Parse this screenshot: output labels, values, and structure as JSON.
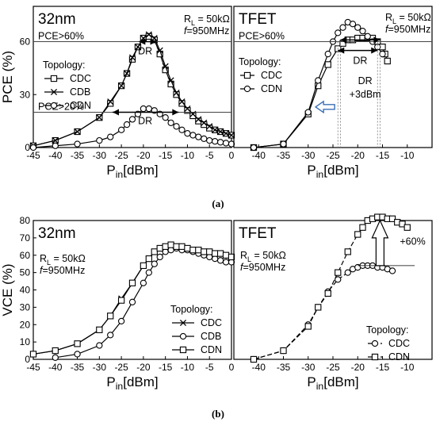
{
  "captions": {
    "a": "(a)",
    "b": "(b)"
  },
  "chart_data": [
    {
      "id": "a_left",
      "type": "line",
      "title": "32nm",
      "xlabel": "Pin[dBm]",
      "ylabel": "PCE (%)",
      "xlim": [
        -45,
        0
      ],
      "ylim": [
        0,
        80
      ],
      "xticks": [
        -45,
        -40,
        -35,
        -30,
        -25,
        -20,
        -15,
        -10,
        -5,
        0
      ],
      "yticks": [
        0,
        30,
        60
      ],
      "legend_title": "Topology:",
      "annotations": [
        "RL = 50kΩ",
        "f=950MHz",
        "PCE>60%",
        "PCE>20%",
        "DR",
        "DR"
      ],
      "series": [
        {
          "name": "CDC",
          "marker": "square",
          "style": "solid",
          "x": [
            -45,
            -40,
            -35,
            -30,
            -27.5,
            -25,
            -23.75,
            -22.5,
            -21.25,
            -20,
            -18.75,
            -17.5,
            -16.25,
            -15,
            -13.75,
            -12.5,
            -11.25,
            -10,
            -8.75,
            -7.5,
            -6.25,
            -5,
            -3.75,
            -2.5,
            -1.25,
            0
          ],
          "y": [
            1,
            4,
            9,
            17,
            25,
            35,
            42,
            50,
            57,
            62,
            63,
            61,
            53,
            44,
            36,
            30,
            25,
            21,
            18,
            15,
            13,
            11,
            10,
            9,
            8,
            7
          ]
        },
        {
          "name": "CDB",
          "marker": "cross",
          "style": "solid",
          "x": [
            -45,
            -40,
            -35,
            -30,
            -27.5,
            -25,
            -23.75,
            -22.5,
            -21.25,
            -20,
            -18.75,
            -17.5,
            -16.25,
            -15,
            -13.75,
            -12.5,
            -11.25,
            -10,
            -8.75,
            -7.5,
            -6.25,
            -5,
            -3.75,
            -2.5,
            -1.25,
            0
          ],
          "y": [
            1,
            4,
            9,
            17,
            26,
            35,
            42,
            51,
            57,
            62,
            64,
            62,
            55,
            46,
            38,
            31,
            26,
            22,
            19,
            16,
            14,
            12,
            10,
            9,
            8,
            7
          ]
        },
        {
          "name": "CDN",
          "marker": "circle",
          "style": "solid",
          "x": [
            -45,
            -40,
            -35,
            -30,
            -27.5,
            -25,
            -23.75,
            -22.5,
            -21.25,
            -20,
            -18.75,
            -17.5,
            -16.25,
            -15,
            -13.75,
            -12.5,
            -11.25,
            -10,
            -8.75,
            -7.5,
            -6.25,
            -5,
            -3.75,
            -2.5,
            -1.25,
            0
          ],
          "y": [
            0,
            1,
            2,
            4,
            6,
            10,
            13,
            16,
            19,
            22,
            22,
            21,
            19,
            17,
            14,
            12,
            10,
            8,
            7,
            6,
            5,
            4,
            3.5,
            3,
            2.5,
            2
          ]
        }
      ]
    },
    {
      "id": "a_right",
      "type": "line",
      "title": "TFET",
      "xlabel": "Pin[dBm]",
      "ylabel": "",
      "xlim": [
        -45,
        -5
      ],
      "ylim": [
        0,
        80
      ],
      "xticks": [
        -40,
        -35,
        -30,
        -25,
        -20,
        -15,
        -10
      ],
      "legend_title": "Topology:",
      "annotations": [
        "RL = 50kΩ",
        "f=950MHz",
        "PCE>60%",
        "DR",
        "DR",
        "+3dBm"
      ],
      "series": [
        {
          "name": "CDC",
          "marker": "square",
          "style": "solid",
          "x": [
            -41,
            -35,
            -30,
            -28,
            -26,
            -24,
            -23,
            -22,
            -21,
            -20,
            -19,
            -18,
            -17,
            -16,
            -15,
            -14.5,
            -14
          ],
          "y": [
            0,
            2,
            19,
            35,
            47,
            56,
            59,
            61,
            61,
            62,
            62,
            62,
            62,
            60,
            57,
            53,
            49
          ]
        },
        {
          "name": "CDN",
          "marker": "circle",
          "style": "solid",
          "x": [
            -41,
            -35,
            -30,
            -28,
            -26,
            -25,
            -24,
            -23,
            -22,
            -21,
            -20,
            -19,
            -18,
            -17,
            -16,
            -15
          ],
          "y": [
            0,
            2,
            20,
            38,
            53,
            60,
            65,
            68,
            71,
            70,
            68,
            66,
            63,
            60,
            57,
            53
          ]
        }
      ]
    },
    {
      "id": "b_left",
      "type": "line",
      "title": "32nm",
      "xlabel": "Pin[dBm]",
      "ylabel": "VCE (%)",
      "xlim": [
        -45,
        0
      ],
      "ylim": [
        0,
        80
      ],
      "xticks": [
        -45,
        -40,
        -35,
        -30,
        -25,
        -20,
        -15,
        -10,
        -5,
        0
      ],
      "yticks": [
        0,
        10,
        20,
        30,
        40,
        50,
        60,
        70,
        80
      ],
      "legend_title": "Topology:",
      "annotations": [
        "RL = 50kΩ",
        "f=950MHz"
      ],
      "series": [
        {
          "name": "CDC",
          "marker": "cross",
          "style": "solid",
          "x": [
            -45,
            -40,
            -35,
            -30,
            -27.5,
            -25,
            -22.5,
            -20,
            -18.75,
            -17.5,
            -16.25,
            -15,
            -13.75,
            -12.5,
            -11.25,
            -10,
            -8.75,
            -7.5,
            -6.25,
            -5,
            -3.75,
            -2.5,
            -1.25,
            0
          ],
          "y": [
            3,
            5,
            9,
            17,
            25,
            35,
            44,
            54,
            58,
            62,
            64,
            65,
            66,
            65,
            65,
            64,
            63,
            63,
            62,
            62,
            61,
            61,
            60,
            59
          ]
        },
        {
          "name": "CDB",
          "marker": "circle",
          "style": "solid",
          "x": [
            -40,
            -35,
            -30,
            -27.5,
            -25,
            -22.5,
            -20,
            -18.75,
            -17.5,
            -16.25,
            -15,
            -13.75,
            -12.5,
            -11.25,
            -10,
            -8.75,
            -7.5,
            -6.25,
            -5,
            -3.75,
            -2.5,
            -1.25,
            0
          ],
          "y": [
            1,
            3,
            8,
            14,
            22,
            33,
            44,
            50,
            55,
            59,
            62,
            63,
            64,
            63,
            63,
            62,
            61,
            60,
            59,
            58,
            57,
            56,
            56
          ]
        },
        {
          "name": "CDN",
          "marker": "square",
          "style": "solid",
          "x": [
            -45,
            -40,
            -35,
            -30,
            -27.5,
            -25,
            -22.5,
            -20,
            -18.75,
            -17.5,
            -16.25,
            -15,
            -13.75,
            -12.5,
            -11.25,
            -10,
            -8.75,
            -7.5,
            -6.25,
            -5,
            -3.75,
            -2.5,
            -1.25,
            0
          ],
          "y": [
            3,
            5,
            9,
            17,
            25,
            34,
            44,
            54,
            58,
            62,
            64,
            65,
            66,
            65,
            65,
            64,
            63,
            63,
            62,
            62,
            61,
            61,
            60,
            59
          ]
        }
      ]
    },
    {
      "id": "b_right",
      "type": "line",
      "title": "TFET",
      "xlabel": "Pin[dBm]",
      "ylabel": "",
      "xlim": [
        -45,
        -5
      ],
      "ylim": [
        0,
        80
      ],
      "xticks": [
        -40,
        -35,
        -30,
        -25,
        -20,
        -15,
        -10
      ],
      "legend_title": "Topology:",
      "annotations": [
        "RL = 50kΩ",
        "f=950MHz",
        "+60%"
      ],
      "series": [
        {
          "name": "CDC",
          "marker": "circle",
          "style": "dashed",
          "x": [
            -41,
            -35,
            -30,
            -28,
            -26,
            -24,
            -22,
            -21,
            -20,
            -19,
            -18,
            -17,
            -16,
            -15,
            -14,
            -13
          ],
          "y": [
            0,
            5,
            20,
            30,
            39,
            46,
            50,
            52,
            53,
            54,
            54,
            54,
            53,
            53,
            52,
            51
          ]
        },
        {
          "name": "CDN",
          "marker": "square",
          "style": "dashed",
          "x": [
            -41,
            -35,
            -30,
            -28,
            -26,
            -24,
            -22,
            -20,
            -19,
            -18,
            -17,
            -16,
            -15,
            -14,
            -13,
            -12,
            -11,
            -10
          ],
          "y": [
            0,
            5,
            19,
            30,
            38,
            50,
            62,
            72,
            76,
            80,
            81,
            82,
            82,
            81,
            81,
            79,
            78,
            76
          ]
        }
      ]
    }
  ]
}
